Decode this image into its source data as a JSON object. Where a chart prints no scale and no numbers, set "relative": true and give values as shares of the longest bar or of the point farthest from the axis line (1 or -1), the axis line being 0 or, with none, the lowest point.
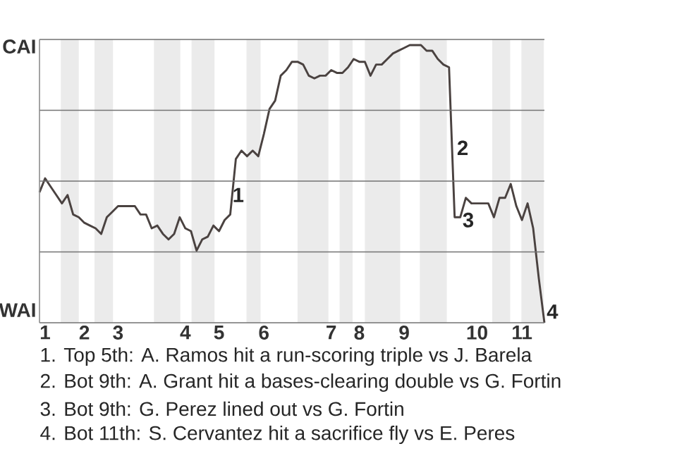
{
  "chart_data": {
    "type": "line",
    "relative": true,
    "categories": [
      null,
      "1",
      null,
      null,
      null,
      null,
      null,
      null,
      "2",
      null,
      null,
      null,
      null,
      null,
      "3",
      null,
      null,
      null,
      null,
      null,
      null,
      null,
      null,
      null,
      null,
      null,
      "4",
      null,
      null,
      null,
      null,
      null,
      "5",
      null,
      null,
      null,
      null,
      null,
      null,
      null,
      "6",
      null,
      null,
      null,
      null,
      null,
      null,
      null,
      null,
      null,
      null,
      null,
      "7",
      null,
      null,
      null,
      null,
      "8",
      null,
      null,
      null,
      null,
      null,
      null,
      null,
      "9",
      null,
      null,
      null,
      null,
      null,
      null,
      null,
      null,
      null,
      null,
      null,
      null,
      "10",
      null,
      null,
      null,
      null,
      null,
      null,
      null,
      "11",
      null,
      null,
      null,
      null
    ],
    "series": [
      {
        "color": "#4a4240",
        "values": [
          0.47,
          0.52,
          0.49,
          0.46,
          0.43,
          0.46,
          0.39,
          0.38,
          0.36,
          0.35,
          0.34,
          0.32,
          0.38,
          0.4,
          0.42,
          0.42,
          0.42,
          0.42,
          0.39,
          0.39,
          0.34,
          0.35,
          0.32,
          0.3,
          0.32,
          0.38,
          0.34,
          0.33,
          0.26,
          0.3,
          0.31,
          0.35,
          0.33,
          0.37,
          0.39,
          0.59,
          0.62,
          0.6,
          0.62,
          0.6,
          0.68,
          0.77,
          0.8,
          0.89,
          0.91,
          0.94,
          0.94,
          0.93,
          0.89,
          0.88,
          0.89,
          0.89,
          0.91,
          0.9,
          0.9,
          0.92,
          0.95,
          0.94,
          0.94,
          0.89,
          0.93,
          0.93,
          0.95,
          0.97,
          0.98,
          0.99,
          1,
          1,
          1,
          0.98,
          0.98,
          0.95,
          0.93,
          0.92,
          0.38,
          0.38,
          0.45,
          0.43,
          0.43,
          0.43,
          0.43,
          0.38,
          0.45,
          0.45,
          0.5,
          0.42,
          0.37,
          0.43,
          0.34,
          0.16,
          0
        ]
      }
    ],
    "grid": "y",
    "annotations": [
      "1",
      "2",
      "3",
      "4",
      "CAI",
      "WAI",
      "1. Top 5th: A. Ramos hit a run-scoring triple vs J. Barela",
      "2. Bot 9th: A. Grant hit a bases-clearing double vs G. Fortin",
      "3. Bot 9th: G. Perez lined out vs G. Fortin",
      "4. Bot 11th: S. Cervantez hit a sacrifice fly vs E. Peres"
    ]
  }
}
